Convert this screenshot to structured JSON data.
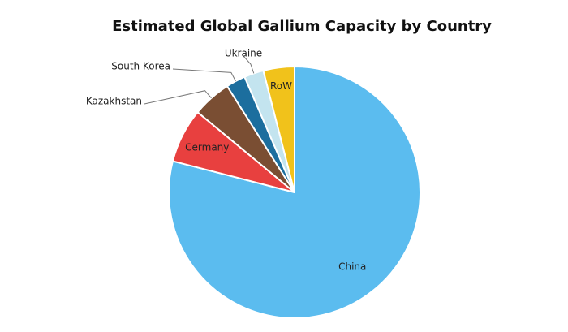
{
  "chart_data": {
    "type": "pie",
    "title": "Estimated Global Gallium Capacity by Country",
    "categories": [
      "China",
      "Cermany",
      "Kazakhstan",
      "South Korea",
      "Ukraine",
      "RoW"
    ],
    "values": [
      79,
      7,
      5,
      2.5,
      2.5,
      4
    ],
    "colors": [
      "#5bbcef",
      "#e8403f",
      "#7a4e33",
      "#1c6e9e",
      "#c3e4ef",
      "#f1c21b"
    ]
  }
}
